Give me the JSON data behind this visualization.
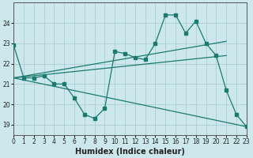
{
  "xlabel": "Humidex (Indice chaleur)",
  "bg_color": "#cde8ed",
  "grid_color": "#aacdd4",
  "line_color": "#1a7a6e",
  "x": [
    0,
    1,
    2,
    3,
    4,
    5,
    6,
    7,
    8,
    9,
    10,
    11,
    12,
    13,
    14,
    15,
    16,
    17,
    18,
    19,
    20,
    21,
    22,
    23
  ],
  "line_jagged": [
    22.9,
    21.3,
    21.3,
    21.4,
    21.0,
    21.0,
    20.3,
    19.5,
    19.3,
    19.8,
    22.6,
    22.5,
    22.3,
    22.2,
    23.0,
    24.4,
    24.4,
    23.5,
    24.1,
    23.0,
    22.4,
    20.7,
    19.5,
    18.9
  ],
  "trend1_x": [
    0,
    23
  ],
  "trend1_y": [
    21.3,
    18.9
  ],
  "trend2_x": [
    0,
    21
  ],
  "trend2_y": [
    21.3,
    22.4
  ],
  "trend3_x": [
    0,
    21
  ],
  "trend3_y": [
    21.3,
    23.1
  ],
  "ylim": [
    18.5,
    25.0
  ],
  "xlim": [
    0,
    23
  ],
  "yticks": [
    19,
    20,
    21,
    22,
    23,
    24
  ],
  "xticks": [
    0,
    1,
    2,
    3,
    4,
    5,
    6,
    7,
    8,
    9,
    10,
    11,
    12,
    13,
    14,
    15,
    16,
    17,
    18,
    19,
    20,
    21,
    22,
    23
  ],
  "xlabel_fontsize": 7,
  "tick_fontsize": 5.5
}
